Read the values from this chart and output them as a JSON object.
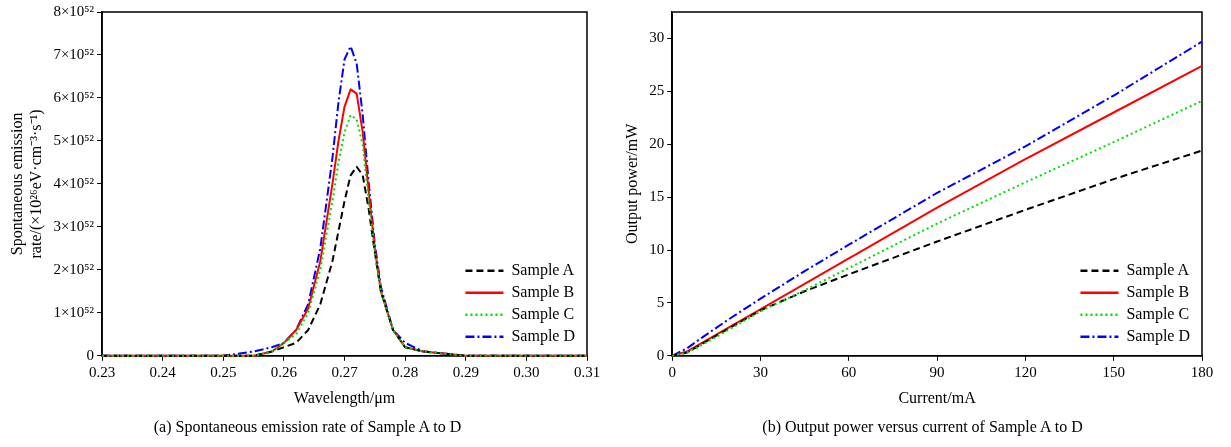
{
  "chart_data": [
    {
      "type": "line",
      "xlabel": "Wavelength/μm",
      "ylabel": "Spontaneous emission rate/(×10²⁶eV·cm⁻³·s⁻¹)",
      "xlim": [
        0.23,
        0.31
      ],
      "ylim": [
        0,
        8e+52
      ],
      "xticks": [
        0.23,
        0.24,
        0.25,
        0.26,
        0.27,
        0.28,
        0.29,
        {
          "value": 0.3,
          "label": "0.30"
        },
        0.31
      ],
      "yticks": [
        0,
        {
          "value": 1e+52,
          "label": "1×10⁵²"
        },
        {
          "value": 2e+52,
          "label": "2×10⁵²"
        },
        {
          "value": 3e+52,
          "label": "3×10⁵²"
        },
        {
          "value": 4e+52,
          "label": "4×10⁵²"
        },
        {
          "value": 5e+52,
          "label": "5×10⁵²"
        },
        {
          "value": 6e+52,
          "label": "6×10⁵²"
        },
        {
          "value": 7e+52,
          "label": "7×10⁵²"
        },
        {
          "value": 8e+52,
          "label": "8×10⁵²"
        }
      ],
      "x": [
        0.23,
        0.25,
        0.255,
        0.258,
        0.26,
        0.262,
        0.264,
        0.266,
        0.268,
        0.269,
        0.27,
        0.271,
        0.272,
        0.273,
        0.274,
        0.275,
        0.276,
        0.278,
        0.28,
        0.283,
        0.29,
        0.31
      ],
      "legend": "bottom right",
      "grid": false,
      "series": [
        {
          "name": "Sample A",
          "color": "#000000",
          "line_style": "dashed",
          "values": [
            0,
            0,
            0,
            1e+51,
            2e+51,
            3e+51,
            6e+51,
            1.2e+52,
            2.2e+52,
            2.9e+52,
            3.6e+52,
            4.2e+52,
            4.4e+52,
            4.2e+52,
            3.4e+52,
            2.4e+52,
            1.5e+52,
            6e+51,
            2e+51,
            1e+51,
            0,
            0
          ]
        },
        {
          "name": "Sample B",
          "color": "#ff0000",
          "line_style": "solid",
          "values": [
            0,
            0,
            0,
            1e+51,
            3e+51,
            6e+51,
            1.1e+52,
            2.2e+52,
            4e+52,
            5e+52,
            5.8e+52,
            6.2e+52,
            6.1e+52,
            5.2e+52,
            3.8e+52,
            2.5e+52,
            1.5e+52,
            6e+51,
            2e+51,
            1e+51,
            0,
            0
          ]
        },
        {
          "name": "Sample C",
          "color": "#00e000",
          "line_style": "dotted",
          "values": [
            0,
            0,
            0,
            1e+51,
            3e+51,
            5e+51,
            1e+52,
            2e+52,
            3.6e+52,
            4.5e+52,
            5.2e+52,
            5.6e+52,
            5.5e+52,
            4.9e+52,
            3.6e+52,
            2.4e+52,
            1.5e+52,
            6e+51,
            2e+51,
            1e+51,
            0,
            0
          ]
        },
        {
          "name": "Sample D",
          "color": "#0000ff",
          "line_style": "dashdot",
          "values": [
            0,
            0,
            1e+51,
            2e+51,
            3e+51,
            6e+51,
            1.2e+52,
            2.5e+52,
            4.6e+52,
            5.9e+52,
            6.9e+52,
            7.2e+52,
            6.8e+52,
            5.6e+52,
            4e+52,
            2.6e+52,
            1.6e+52,
            6e+51,
            3e+51,
            1e+51,
            0,
            0
          ]
        }
      ],
      "annotations": [
        "(a) Spontaneous emission rate of Sample A to D"
      ]
    },
    {
      "type": "line",
      "xlabel": "Current/mA",
      "ylabel": "Output power/mW",
      "xlim": [
        0,
        180
      ],
      "ylim": [
        0,
        32.5
      ],
      "xticks": [
        0,
        30,
        60,
        90,
        120,
        150,
        180
      ],
      "yticks": [
        0,
        5,
        10,
        15,
        20,
        25,
        30
      ],
      "x": [
        0,
        5,
        10,
        20,
        30,
        45,
        60,
        90,
        120,
        150,
        180
      ],
      "legend": "bottom right",
      "grid": false,
      "series": [
        {
          "name": "Sample A",
          "color": "#000000",
          "line_style": "dashed",
          "values": [
            0,
            0.3,
            1.1,
            2.7,
            4.3,
            6.1,
            7.7,
            10.8,
            13.8,
            16.7,
            19.4
          ]
        },
        {
          "name": "Sample B",
          "color": "#ff0000",
          "line_style": "solid",
          "values": [
            0,
            0.4,
            1.2,
            2.8,
            4.4,
            6.8,
            9.2,
            14.0,
            18.6,
            23.0,
            27.4
          ]
        },
        {
          "name": "Sample C",
          "color": "#00e000",
          "line_style": "dotted",
          "values": [
            0,
            0.3,
            1.0,
            2.6,
            4.2,
            6.2,
            8.3,
            12.5,
            16.4,
            20.2,
            24.1
          ]
        },
        {
          "name": "Sample D",
          "color": "#0000ff",
          "line_style": "dashdot",
          "values": [
            0,
            0.7,
            1.7,
            3.6,
            5.4,
            8.0,
            10.5,
            15.4,
            19.8,
            24.6,
            29.7
          ]
        }
      ],
      "annotations": [
        "(b) Output power versus current of Sample A to D"
      ]
    }
  ]
}
